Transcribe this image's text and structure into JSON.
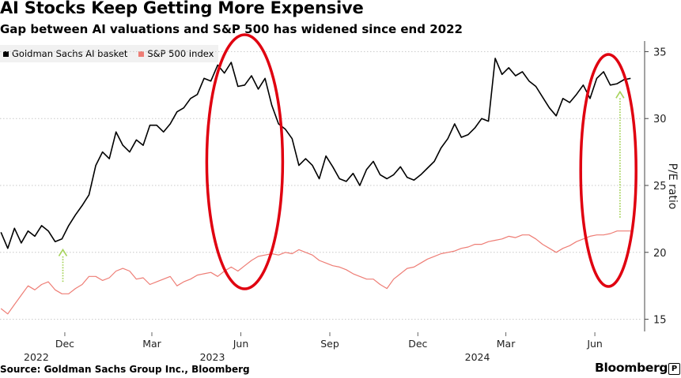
{
  "title": "AI Stocks Keep Getting More Expensive",
  "subtitle": "Gap between AI valuations and S&P 500 has widened since end 2022",
  "source": "Source: Goldman Sachs Group Inc., Bloomberg",
  "brand": "Bloomberg",
  "brand_badge": "P",
  "colors": {
    "ai_series": "#000000",
    "sp_series": "#ee7d75",
    "annotation_ellipse": "#e00010",
    "annotation_arrow": "#a6d35a",
    "grid": "#c8c8c8",
    "axis_text": "#222222"
  },
  "chart_data": {
    "type": "line",
    "title": "AI Stocks Keep Getting More Expensive",
    "subtitle": "Gap between AI valuations and S&P 500 has widened since end 2022",
    "ylabel": "P/E ratio",
    "y_axis_side": "right",
    "ylim": [
      13.5,
      36.5
    ],
    "yticks": [
      15,
      20,
      25,
      30,
      35
    ],
    "xlim": [
      "2022-09-25",
      "2024-07-20"
    ],
    "x_tick_labels": [
      {
        "date": "2022-12-01",
        "label": "Dec"
      },
      {
        "date": "2023-03-01",
        "label": "Mar"
      },
      {
        "date": "2023-06-01",
        "label": "Jun"
      },
      {
        "date": "2023-09-01",
        "label": "Sep"
      },
      {
        "date": "2023-12-01",
        "label": "Dec"
      },
      {
        "date": "2024-03-01",
        "label": "Mar"
      },
      {
        "date": "2024-06-01",
        "label": "Jun"
      }
    ],
    "x_year_labels": [
      {
        "date": "2022-12-01",
        "label": "2022"
      },
      {
        "date": "2023-06-01",
        "label": "2023"
      },
      {
        "date": "2024-03-01",
        "label": "2024"
      }
    ],
    "grid": "horizontal",
    "legend_position": "top-left",
    "series": [
      {
        "name": "Goldman Sachs AI basket",
        "color": "#000000",
        "x": [
          "2022-09-26",
          "2022-10-03",
          "2022-10-10",
          "2022-10-17",
          "2022-10-24",
          "2022-10-31",
          "2022-11-07",
          "2022-11-14",
          "2022-11-21",
          "2022-11-28",
          "2022-12-05",
          "2022-12-12",
          "2022-12-19",
          "2022-12-26",
          "2023-01-02",
          "2023-01-09",
          "2023-01-16",
          "2023-01-23",
          "2023-01-30",
          "2023-02-06",
          "2023-02-13",
          "2023-02-20",
          "2023-02-27",
          "2023-03-06",
          "2023-03-13",
          "2023-03-20",
          "2023-03-27",
          "2023-04-03",
          "2023-04-10",
          "2023-04-17",
          "2023-04-24",
          "2023-05-01",
          "2023-05-08",
          "2023-05-15",
          "2023-05-22",
          "2023-05-29",
          "2023-06-05",
          "2023-06-12",
          "2023-06-19",
          "2023-06-26",
          "2023-07-03",
          "2023-07-10",
          "2023-07-17",
          "2023-07-24",
          "2023-07-31",
          "2023-08-07",
          "2023-08-14",
          "2023-08-21",
          "2023-08-28",
          "2023-09-04",
          "2023-09-11",
          "2023-09-18",
          "2023-09-25",
          "2023-10-02",
          "2023-10-09",
          "2023-10-16",
          "2023-10-23",
          "2023-10-30",
          "2023-11-06",
          "2023-11-13",
          "2023-11-20",
          "2023-11-27",
          "2023-12-04",
          "2023-12-11",
          "2023-12-18",
          "2023-12-25",
          "2024-01-01",
          "2024-01-08",
          "2024-01-15",
          "2024-01-22",
          "2024-01-29",
          "2024-02-05",
          "2024-02-12",
          "2024-02-19",
          "2024-02-26",
          "2024-03-04",
          "2024-03-11",
          "2024-03-18",
          "2024-03-25",
          "2024-04-01",
          "2024-04-08",
          "2024-04-15",
          "2024-04-22",
          "2024-04-29",
          "2024-05-06",
          "2024-05-13",
          "2024-05-20",
          "2024-05-27",
          "2024-06-03",
          "2024-06-10",
          "2024-06-17",
          "2024-06-24",
          "2024-07-01",
          "2024-07-08"
        ],
        "values": [
          21.5,
          20.3,
          21.8,
          20.7,
          21.6,
          21.2,
          22.0,
          21.6,
          20.8,
          21.0,
          22.0,
          22.8,
          23.5,
          24.3,
          26.5,
          27.5,
          27.0,
          29.0,
          28.0,
          27.5,
          28.4,
          28.0,
          29.5,
          29.5,
          29.0,
          29.6,
          30.5,
          30.8,
          31.5,
          31.8,
          33.0,
          32.8,
          34.0,
          33.4,
          34.2,
          32.4,
          32.5,
          33.2,
          32.2,
          33.0,
          31.0,
          29.6,
          29.2,
          28.5,
          26.5,
          27.0,
          26.5,
          25.5,
          27.2,
          26.4,
          25.5,
          25.3,
          25.9,
          25.0,
          26.2,
          26.8,
          25.8,
          25.5,
          25.8,
          26.4,
          25.6,
          25.4,
          25.8,
          26.3,
          26.8,
          27.8,
          28.5,
          29.6,
          28.6,
          28.8,
          29.3,
          30.0,
          29.8,
          34.5,
          33.3,
          33.8,
          33.2,
          33.5,
          32.8,
          32.4,
          31.6,
          30.8,
          30.2,
          31.5,
          31.2,
          31.8,
          32.5,
          31.5,
          33.0,
          33.5,
          32.5,
          32.6,
          32.9,
          33.0
        ]
      },
      {
        "name": "S&P 500 Index",
        "color": "#ee7d75",
        "x": [
          "2022-09-26",
          "2022-10-03",
          "2022-10-10",
          "2022-10-17",
          "2022-10-24",
          "2022-10-31",
          "2022-11-07",
          "2022-11-14",
          "2022-11-21",
          "2022-11-28",
          "2022-12-05",
          "2022-12-12",
          "2022-12-19",
          "2022-12-26",
          "2023-01-02",
          "2023-01-09",
          "2023-01-16",
          "2023-01-23",
          "2023-01-30",
          "2023-02-06",
          "2023-02-13",
          "2023-02-20",
          "2023-02-27",
          "2023-03-06",
          "2023-03-13",
          "2023-03-20",
          "2023-03-27",
          "2023-04-03",
          "2023-04-10",
          "2023-04-17",
          "2023-04-24",
          "2023-05-01",
          "2023-05-08",
          "2023-05-15",
          "2023-05-22",
          "2023-05-29",
          "2023-06-05",
          "2023-06-12",
          "2023-06-19",
          "2023-06-26",
          "2023-07-03",
          "2023-07-10",
          "2023-07-17",
          "2023-07-24",
          "2023-07-31",
          "2023-08-07",
          "2023-08-14",
          "2023-08-21",
          "2023-08-28",
          "2023-09-04",
          "2023-09-11",
          "2023-09-18",
          "2023-09-25",
          "2023-10-02",
          "2023-10-09",
          "2023-10-16",
          "2023-10-23",
          "2023-10-30",
          "2023-11-06",
          "2023-11-13",
          "2023-11-20",
          "2023-11-27",
          "2023-12-04",
          "2023-12-11",
          "2023-12-18",
          "2023-12-25",
          "2024-01-01",
          "2024-01-08",
          "2024-01-15",
          "2024-01-22",
          "2024-01-29",
          "2024-02-05",
          "2024-02-12",
          "2024-02-19",
          "2024-02-26",
          "2024-03-04",
          "2024-03-11",
          "2024-03-18",
          "2024-03-25",
          "2024-04-01",
          "2024-04-08",
          "2024-04-15",
          "2024-04-22",
          "2024-04-29",
          "2024-05-06",
          "2024-05-13",
          "2024-05-20",
          "2024-05-27",
          "2024-06-03",
          "2024-06-10",
          "2024-06-17",
          "2024-06-24",
          "2024-07-01",
          "2024-07-08"
        ],
        "values": [
          15.8,
          15.4,
          16.1,
          16.8,
          17.5,
          17.2,
          17.6,
          17.8,
          17.2,
          16.9,
          16.9,
          17.3,
          17.6,
          18.2,
          18.2,
          17.9,
          18.1,
          18.6,
          18.8,
          18.6,
          18.0,
          18.1,
          17.6,
          17.8,
          18.0,
          18.2,
          17.5,
          17.8,
          18.0,
          18.3,
          18.4,
          18.5,
          18.2,
          18.6,
          18.9,
          18.6,
          19.0,
          19.4,
          19.7,
          19.8,
          19.9,
          19.8,
          20.0,
          19.9,
          20.2,
          20.0,
          19.8,
          19.4,
          19.2,
          19.0,
          18.9,
          18.7,
          18.4,
          18.2,
          18.0,
          18.0,
          17.6,
          17.3,
          18.0,
          18.4,
          18.8,
          18.9,
          19.2,
          19.5,
          19.7,
          19.9,
          20.0,
          20.1,
          20.3,
          20.4,
          20.6,
          20.6,
          20.8,
          20.9,
          21.0,
          21.2,
          21.1,
          21.3,
          21.3,
          21.0,
          20.6,
          20.3,
          20.0,
          20.3,
          20.5,
          20.8,
          21.0,
          21.2,
          21.3,
          21.3,
          21.4,
          21.6,
          21.6,
          21.6
        ]
      }
    ]
  }
}
